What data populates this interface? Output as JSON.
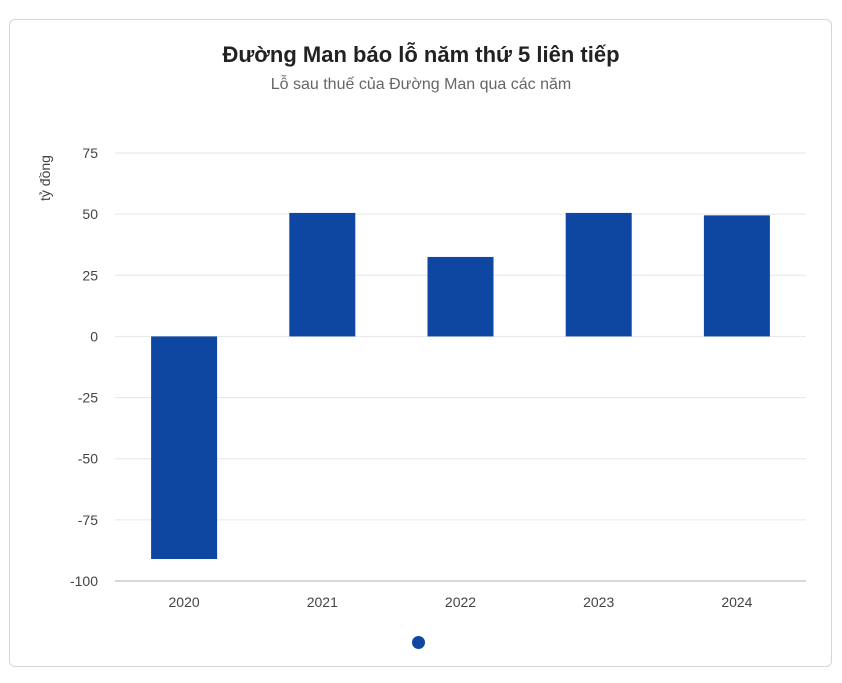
{
  "colors": {
    "bar": "#0d47a1",
    "grid": "#e6e6e6",
    "axis": "#cccccc",
    "pager": "#0d47a1"
  },
  "chart_data": {
    "type": "bar",
    "title": "Đường Man báo lỗ năm thứ 5 liên tiếp",
    "subtitle": "Lỗ sau thuế của Đường Man qua các năm",
    "xlabel": "",
    "ylabel": "tỷ đồng",
    "categories": [
      "2020",
      "2021",
      "2022",
      "2023",
      "2024"
    ],
    "values": [
      -91,
      50.5,
      32.5,
      50.5,
      49.5
    ],
    "ylim": [
      -100,
      75
    ],
    "yticks": [
      75,
      50,
      25,
      0,
      -25,
      -50,
      -75,
      -100
    ],
    "ytick_labels": [
      "75",
      "50",
      "25",
      "0",
      "-25",
      "-50",
      "-75",
      "-100"
    ],
    "grid": true,
    "legend": "none"
  }
}
